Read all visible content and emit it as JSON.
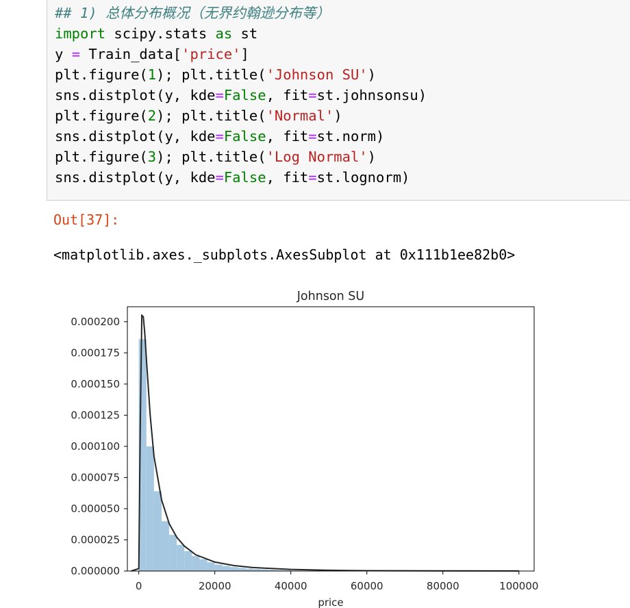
{
  "cell": {
    "lines": [
      [
        {
          "t": "## 1) 总体分布概况（无界约翰逊分布等）",
          "c": "cm"
        }
      ],
      [
        {
          "t": "import",
          "c": "kw"
        },
        {
          "t": " scipy.stats "
        },
        {
          "t": "as",
          "c": "kw"
        },
        {
          "t": " st"
        }
      ],
      [
        {
          "t": "y "
        },
        {
          "t": "=",
          "c": "op"
        },
        {
          "t": " Train_data["
        },
        {
          "t": "'price'",
          "c": "st"
        },
        {
          "t": "]"
        }
      ],
      [
        {
          "t": "plt.figure("
        },
        {
          "t": "1",
          "c": "nu"
        },
        {
          "t": "); plt.title("
        },
        {
          "t": "'Johnson SU'",
          "c": "st"
        },
        {
          "t": ")"
        }
      ],
      [
        {
          "t": "sns.distplot(y, kde"
        },
        {
          "t": "=",
          "c": "op"
        },
        {
          "t": "False",
          "c": "kw"
        },
        {
          "t": ", fit"
        },
        {
          "t": "=",
          "c": "op"
        },
        {
          "t": "st.johnsonsu)"
        }
      ],
      [
        {
          "t": "plt.figure("
        },
        {
          "t": "2",
          "c": "nu"
        },
        {
          "t": "); plt.title("
        },
        {
          "t": "'Normal'",
          "c": "st"
        },
        {
          "t": ")"
        }
      ],
      [
        {
          "t": "sns.distplot(y, kde"
        },
        {
          "t": "=",
          "c": "op"
        },
        {
          "t": "False",
          "c": "kw"
        },
        {
          "t": ", fit"
        },
        {
          "t": "=",
          "c": "op"
        },
        {
          "t": "st.norm)"
        }
      ],
      [
        {
          "t": "plt.figure("
        },
        {
          "t": "3",
          "c": "nu"
        },
        {
          "t": "); plt.title("
        },
        {
          "t": "'Log Normal'",
          "c": "st"
        },
        {
          "t": ")"
        }
      ],
      [
        {
          "t": "sns.distplot(y, kde"
        },
        {
          "t": "=",
          "c": "op"
        },
        {
          "t": "False",
          "c": "kw"
        },
        {
          "t": ", fit"
        },
        {
          "t": "=",
          "c": "op"
        },
        {
          "t": "st.lognorm)"
        }
      ]
    ]
  },
  "output": {
    "prompt": "Out[37]:",
    "text": "<matplotlib.axes._subplots.AxesSubplot at 0x111b1ee82b0>"
  },
  "colors": {
    "bar": "#a6c8e0",
    "fit_line": "#262626"
  },
  "chart_data": {
    "type": "bar",
    "title": "Johnson SU",
    "xlabel": "price",
    "ylabel": "",
    "xlim": [
      -3000,
      104000
    ],
    "ylim": [
      0,
      0.000212
    ],
    "xticks": [
      0,
      20000,
      40000,
      60000,
      80000,
      100000
    ],
    "xtick_labels": [
      "0",
      "20000",
      "40000",
      "60000",
      "80000",
      "100000"
    ],
    "yticks": [
      0,
      2.5e-05,
      5e-05,
      7.5e-05,
      0.0001,
      0.000125,
      0.00015,
      0.000175,
      0.0002
    ],
    "ytick_labels": [
      "0.000000",
      "0.000025",
      "0.000050",
      "0.000075",
      "0.000100",
      "0.000125",
      "0.000150",
      "0.000175",
      "0.000200"
    ],
    "bin_width": 2000,
    "bins": [
      {
        "x0": 0,
        "value": 0.000186
      },
      {
        "x0": 2000,
        "value": 0.0001
      },
      {
        "x0": 4000,
        "value": 6.4e-05
      },
      {
        "x0": 6000,
        "value": 4e-05
      },
      {
        "x0": 8000,
        "value": 2.9e-05
      },
      {
        "x0": 10000,
        "value": 2.1e-05
      },
      {
        "x0": 12000,
        "value": 1.6e-05
      },
      {
        "x0": 14000,
        "value": 1.2e-05
      },
      {
        "x0": 16000,
        "value": 9.5e-06
      },
      {
        "x0": 18000,
        "value": 7e-06
      },
      {
        "x0": 20000,
        "value": 5.2e-06
      },
      {
        "x0": 22000,
        "value": 4.1e-06
      },
      {
        "x0": 24000,
        "value": 3.2e-06
      },
      {
        "x0": 26000,
        "value": 2.5e-06
      },
      {
        "x0": 28000,
        "value": 2e-06
      },
      {
        "x0": 30000,
        "value": 1.6e-06
      },
      {
        "x0": 32000,
        "value": 1.3e-06
      },
      {
        "x0": 34000,
        "value": 1e-06
      },
      {
        "x0": 36000,
        "value": 8e-07
      },
      {
        "x0": 38000,
        "value": 6e-07
      }
    ],
    "fit_curve": {
      "x": [
        -2000,
        0,
        400,
        800,
        1200,
        1600,
        2000,
        3000,
        4000,
        6000,
        8000,
        10000,
        12000,
        15000,
        20000,
        25000,
        30000,
        40000,
        50000,
        60000,
        80000,
        100000
      ],
      "y": [
        0,
        2e-06,
        0.00012,
        0.000205,
        0.000204,
        0.00019,
        0.00017,
        0.000125,
        9.2e-05,
        5.7e-05,
        3.8e-05,
        2.7e-05,
        2e-05,
        1.3e-05,
        7.2e-06,
        4.4e-06,
        2.8e-06,
        1.3e-06,
        6e-07,
        3e-07,
        1e-07,
        5e-08
      ]
    }
  }
}
